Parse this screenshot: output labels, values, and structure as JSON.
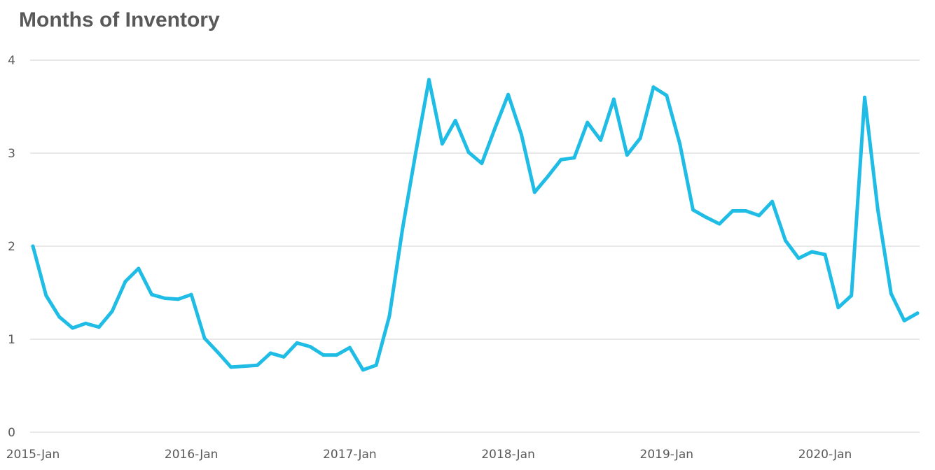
{
  "chart_data": {
    "type": "line",
    "title": "Months of Inventory",
    "xlabel": "",
    "ylabel": "",
    "ylim": [
      0,
      4
    ],
    "yticks": [
      0,
      1,
      2,
      3,
      4
    ],
    "grid": true,
    "legend": "none",
    "x_tick_labels": [
      "2015-Jan",
      "2016-Jan",
      "2017-Jan",
      "2018-Jan",
      "2019-Jan",
      "2020-Jan"
    ],
    "x_tick_index": [
      0,
      12,
      24,
      36,
      48,
      60
    ],
    "series": [
      {
        "color": "#1fbde6",
        "values": [
          2.0,
          1.47,
          1.24,
          1.12,
          1.17,
          1.13,
          1.3,
          1.62,
          1.76,
          1.48,
          1.44,
          1.43,
          1.48,
          1.01,
          0.86,
          0.7,
          0.71,
          0.72,
          0.85,
          0.81,
          0.96,
          0.92,
          0.83,
          0.83,
          0.91,
          0.67,
          0.72,
          1.25,
          2.19,
          3.01,
          3.79,
          3.1,
          3.35,
          3.01,
          2.89,
          3.27,
          3.63,
          3.2,
          2.58,
          2.75,
          2.93,
          2.95,
          3.33,
          3.14,
          3.58,
          2.98,
          3.16,
          3.71,
          3.62,
          3.1,
          2.39,
          2.31,
          2.24,
          2.38,
          2.38,
          2.33,
          2.48,
          2.06,
          1.87,
          1.94,
          1.91,
          1.34,
          1.47,
          3.6,
          2.39,
          1.49,
          1.2,
          1.28
        ]
      }
    ]
  }
}
